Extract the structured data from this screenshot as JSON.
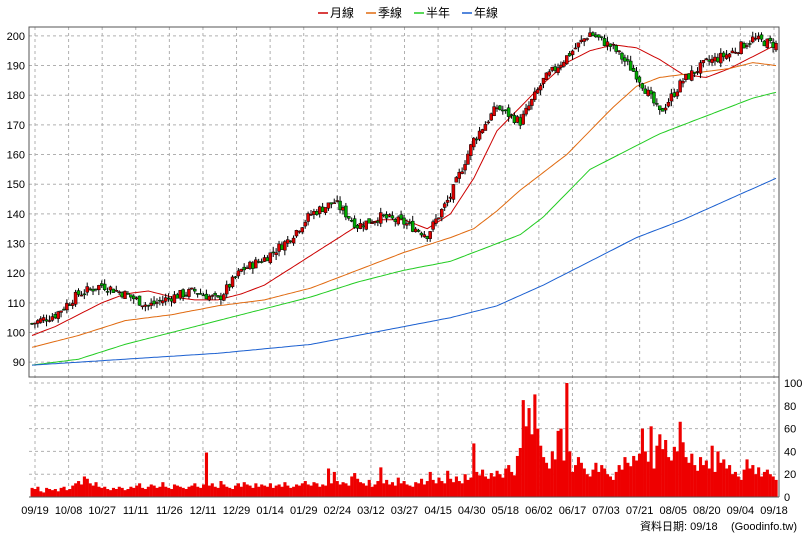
{
  "chart_data": {
    "type": "candlestick",
    "legend": [
      {
        "name": "月線",
        "color": "#cc0000"
      },
      {
        "name": "季線",
        "color": "#e06a10"
      },
      {
        "name": "半年",
        "color": "#22cc22"
      },
      {
        "name": "年線",
        "color": "#1a5fd0"
      }
    ],
    "price_axis": {
      "min": 85,
      "max": 203,
      "ticks": [
        90,
        100,
        110,
        120,
        130,
        140,
        150,
        160,
        170,
        180,
        190,
        200
      ]
    },
    "volume_axis": {
      "min": 0,
      "max": 100,
      "ticks": [
        0,
        20,
        40,
        60,
        80,
        100
      ]
    },
    "x_labels": [
      "09/19",
      "10/08",
      "10/27",
      "11/11",
      "11/26",
      "12/11",
      "12/29",
      "01/14",
      "01/29",
      "02/24",
      "03/12",
      "03/27",
      "04/15",
      "04/30",
      "05/18",
      "06/02",
      "06/17",
      "07/03",
      "07/21",
      "08/05",
      "08/20",
      "09/04",
      "09/18"
    ],
    "grid": true,
    "source_label": "資料日期: 09/18",
    "source_site": "(Goodinfo.tw)",
    "moving_averages": {
      "月線": [
        [
          0,
          99
        ],
        [
          8,
          102
        ],
        [
          16,
          106
        ],
        [
          24,
          110
        ],
        [
          32,
          113
        ],
        [
          40,
          114
        ],
        [
          48,
          112
        ],
        [
          56,
          111
        ],
        [
          64,
          111
        ],
        [
          72,
          113
        ],
        [
          80,
          116
        ],
        [
          88,
          121
        ],
        [
          96,
          126
        ],
        [
          104,
          131
        ],
        [
          112,
          136
        ],
        [
          120,
          138
        ],
        [
          128,
          138
        ],
        [
          136,
          135
        ],
        [
          144,
          140
        ],
        [
          152,
          152
        ],
        [
          160,
          168
        ],
        [
          168,
          176
        ],
        [
          176,
          184
        ],
        [
          184,
          191
        ],
        [
          192,
          195
        ],
        [
          200,
          197
        ],
        [
          208,
          196
        ],
        [
          216,
          192
        ],
        [
          224,
          187
        ],
        [
          232,
          186
        ],
        [
          240,
          189
        ],
        [
          248,
          193
        ],
        [
          256,
          197
        ]
      ],
      "季線": [
        [
          0,
          95
        ],
        [
          16,
          99
        ],
        [
          32,
          104
        ],
        [
          48,
          106
        ],
        [
          64,
          109
        ],
        [
          80,
          111
        ],
        [
          96,
          115
        ],
        [
          112,
          121
        ],
        [
          128,
          127
        ],
        [
          144,
          132
        ],
        [
          152,
          135
        ],
        [
          160,
          141
        ],
        [
          168,
          148
        ],
        [
          176,
          154
        ],
        [
          184,
          160
        ],
        [
          192,
          168
        ],
        [
          200,
          176
        ],
        [
          208,
          183
        ],
        [
          216,
          186
        ],
        [
          224,
          187
        ],
        [
          232,
          188
        ],
        [
          240,
          189
        ],
        [
          248,
          191
        ],
        [
          256,
          190
        ]
      ],
      "半年": [
        [
          0,
          89
        ],
        [
          16,
          91
        ],
        [
          32,
          96
        ],
        [
          48,
          100
        ],
        [
          64,
          104
        ],
        [
          80,
          108
        ],
        [
          96,
          112
        ],
        [
          112,
          117
        ],
        [
          128,
          121
        ],
        [
          144,
          124
        ],
        [
          152,
          127
        ],
        [
          160,
          130
        ],
        [
          168,
          133
        ],
        [
          176,
          139
        ],
        [
          184,
          147
        ],
        [
          192,
          155
        ],
        [
          200,
          159
        ],
        [
          208,
          163
        ],
        [
          216,
          167
        ],
        [
          224,
          170
        ],
        [
          232,
          173
        ],
        [
          240,
          176
        ],
        [
          248,
          179
        ],
        [
          256,
          181
        ]
      ],
      "年線": [
        [
          0,
          89
        ],
        [
          32,
          91
        ],
        [
          64,
          93
        ],
        [
          96,
          96
        ],
        [
          112,
          99
        ],
        [
          128,
          102
        ],
        [
          144,
          105
        ],
        [
          160,
          109
        ],
        [
          176,
          116
        ],
        [
          192,
          124
        ],
        [
          208,
          132
        ],
        [
          224,
          138
        ],
        [
          240,
          145
        ],
        [
          256,
          152
        ]
      ]
    },
    "price_waypoints": [
      [
        0,
        103
      ],
      [
        8,
        106
      ],
      [
        16,
        113
      ],
      [
        24,
        116
      ],
      [
        32,
        113
      ],
      [
        40,
        109
      ],
      [
        48,
        112
      ],
      [
        56,
        114
      ],
      [
        64,
        111
      ],
      [
        72,
        121
      ],
      [
        80,
        125
      ],
      [
        88,
        131
      ],
      [
        96,
        140
      ],
      [
        104,
        144
      ],
      [
        112,
        136
      ],
      [
        120,
        139
      ],
      [
        128,
        137
      ],
      [
        136,
        133
      ],
      [
        144,
        146
      ],
      [
        152,
        165
      ],
      [
        160,
        176
      ],
      [
        168,
        171
      ],
      [
        176,
        185
      ],
      [
        184,
        193
      ],
      [
        192,
        201
      ],
      [
        200,
        196
      ],
      [
        208,
        187
      ],
      [
        216,
        174
      ],
      [
        224,
        185
      ],
      [
        232,
        191
      ],
      [
        240,
        194
      ],
      [
        248,
        199
      ],
      [
        256,
        197
      ]
    ],
    "volume_values": [
      8,
      7,
      9,
      5,
      4,
      8,
      7,
      6,
      7,
      5,
      8,
      9,
      6,
      7,
      10,
      12,
      14,
      11,
      18,
      16,
      12,
      10,
      13,
      9,
      8,
      9,
      7,
      6,
      8,
      7,
      9,
      8,
      6,
      7,
      9,
      8,
      10,
      12,
      8,
      7,
      9,
      11,
      10,
      8,
      9,
      13,
      9,
      8,
      7,
      11,
      10,
      9,
      8,
      7,
      9,
      10,
      12,
      9,
      8,
      11,
      39,
      10,
      12,
      9,
      8,
      14,
      11,
      9,
      8,
      7,
      10,
      12,
      9,
      13,
      11,
      10,
      8,
      12,
      9,
      11,
      10,
      9,
      12,
      8,
      10,
      11,
      9,
      13,
      10,
      8,
      9,
      11,
      10,
      12,
      14,
      11,
      10,
      13,
      12,
      9,
      11,
      10,
      25,
      12,
      22,
      14,
      11,
      13,
      12,
      10,
      18,
      21,
      16,
      13,
      12,
      10,
      15,
      9,
      11,
      14,
      26,
      12,
      15,
      11,
      13,
      10,
      17,
      12,
      14,
      11,
      10,
      9,
      13,
      12,
      16,
      11,
      14,
      22,
      15,
      12,
      17,
      14,
      12,
      23,
      16,
      13,
      18,
      14,
      12,
      20,
      15,
      17,
      47,
      22,
      19,
      24,
      18,
      16,
      21,
      18,
      23,
      20,
      17,
      25,
      28,
      22,
      19,
      36,
      43,
      85,
      62,
      78,
      55,
      90,
      60,
      45,
      35,
      30,
      25,
      40,
      33,
      58,
      60,
      32,
      100,
      40,
      22,
      28,
      35,
      30,
      25,
      20,
      18,
      24,
      30,
      22,
      28,
      25,
      20,
      18,
      15,
      22,
      28,
      24,
      35,
      30,
      27,
      36,
      32,
      38,
      60,
      40,
      31,
      62,
      25,
      45,
      55,
      42,
      50,
      35,
      32,
      44,
      40,
      66,
      48,
      35,
      30,
      38,
      28,
      23,
      35,
      28,
      32,
      25,
      45,
      22,
      40,
      30,
      33,
      25,
      28,
      20,
      22,
      18,
      15,
      24,
      33,
      25,
      28,
      20,
      26,
      18,
      22,
      24,
      20,
      18,
      15,
      16,
      20,
      22,
      26,
      18,
      12,
      15
    ]
  }
}
